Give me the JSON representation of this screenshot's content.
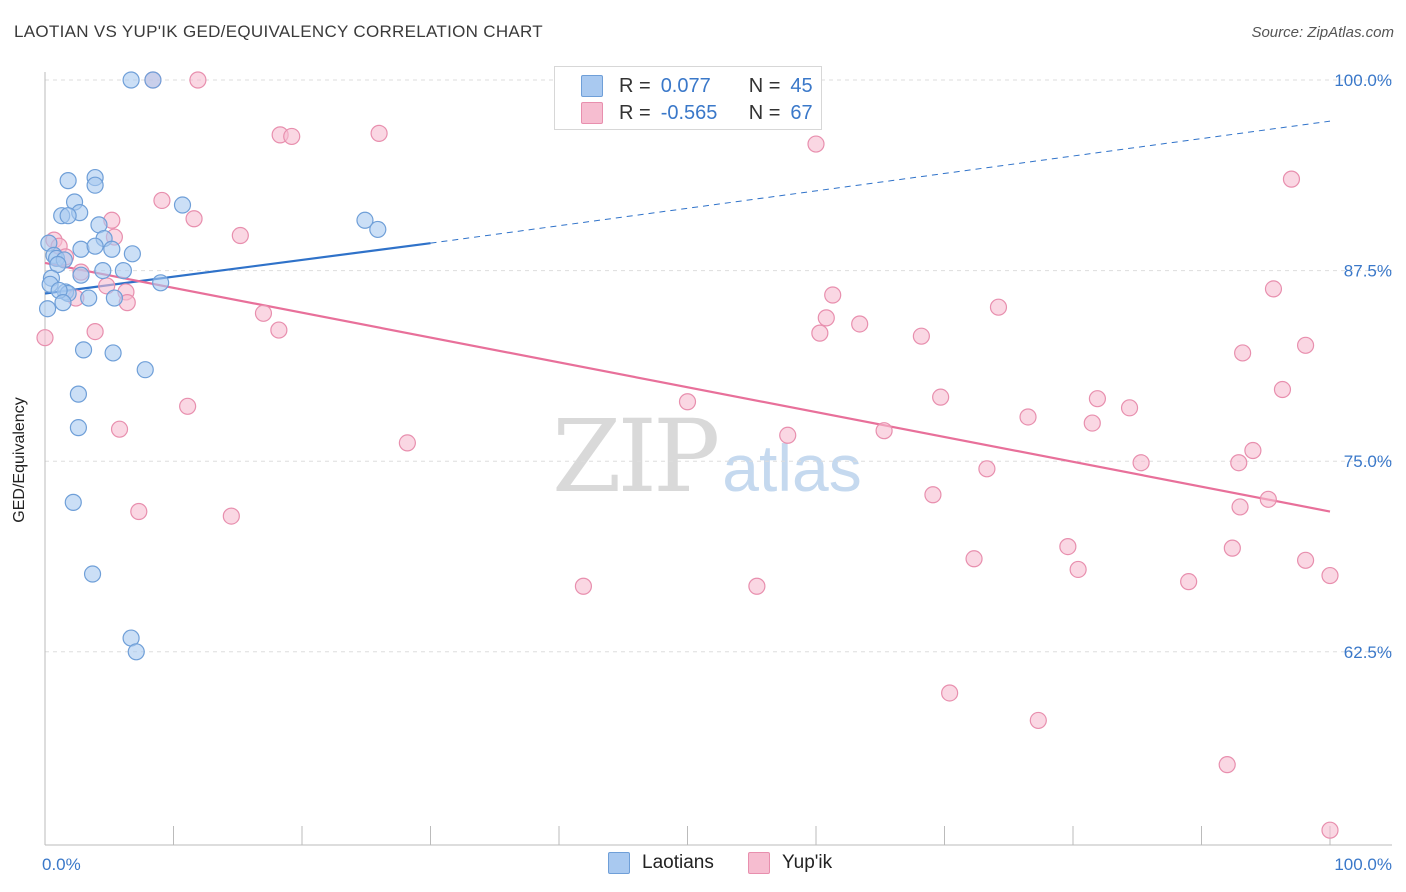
{
  "title": "LAOTIAN VS YUP'IK GED/EQUIVALENCY CORRELATION CHART",
  "source": "Source: ZipAtlas.com",
  "watermark": {
    "zip": "ZIP",
    "atlas": "atlas"
  },
  "legend_top": [
    {
      "r_label": "R =",
      "r_value": "0.077",
      "n_label": "N =",
      "n_value": "45",
      "color": "#a9c9f0"
    },
    {
      "r_label": "R =",
      "r_value": "-0.565",
      "n_label": "N =",
      "n_value": "67",
      "color": "#f6bdd0"
    }
  ],
  "legend_bottom": [
    {
      "label": "Laotians",
      "color": "#a9c9f0"
    },
    {
      "label": "Yup'ik",
      "color": "#f6bdd0"
    }
  ],
  "colors": {
    "laotian_fill": "#a9c9f0",
    "laotian_stroke": "#6f9fd8",
    "laotian_line": "#2f72c9",
    "yupik_fill": "#f6bdd0",
    "yupik_stroke": "#e88fae",
    "yupik_line": "#e8709a",
    "grid": "#dddddd",
    "tick_label": "#3a78c9"
  },
  "chart_data": {
    "type": "scatter",
    "title": "LAOTIAN VS YUP'IK GED/EQUIVALENCY CORRELATION CHART",
    "xlabel": "",
    "ylabel": "GED/Equivalency",
    "xlim": [
      0,
      100
    ],
    "ylim": [
      50.5,
      101
    ],
    "x_tick_labels": [
      "0.0%",
      "100.0%"
    ],
    "y_ticks": [
      62.5,
      75.0,
      87.5,
      100.0
    ],
    "y_tick_labels": [
      "62.5%",
      "75.0%",
      "87.5%",
      "100.0%"
    ],
    "grid": true,
    "legend_position": "top-center",
    "series": [
      {
        "name": "Laotians",
        "r": 0.077,
        "n": 45,
        "trend": {
          "x": [
            0,
            30
          ],
          "y": [
            86.0,
            89.3
          ],
          "dashed_to": [
            100,
            97.3
          ]
        },
        "points": [
          [
            6.7,
            100.0
          ],
          [
            8.4,
            100.0
          ],
          [
            1.8,
            93.4
          ],
          [
            3.9,
            93.6
          ],
          [
            3.9,
            93.1
          ],
          [
            2.3,
            92.0
          ],
          [
            2.7,
            91.3
          ],
          [
            1.3,
            91.1
          ],
          [
            1.8,
            91.1
          ],
          [
            10.7,
            91.8
          ],
          [
            24.9,
            90.8
          ],
          [
            25.9,
            90.2
          ],
          [
            4.2,
            90.5
          ],
          [
            4.6,
            89.6
          ],
          [
            0.3,
            89.3
          ],
          [
            2.8,
            88.9
          ],
          [
            3.9,
            89.1
          ],
          [
            5.2,
            88.9
          ],
          [
            6.8,
            88.6
          ],
          [
            0.7,
            88.5
          ],
          [
            0.9,
            88.3
          ],
          [
            1.5,
            88.2
          ],
          [
            1.0,
            87.9
          ],
          [
            4.5,
            87.5
          ],
          [
            6.1,
            87.5
          ],
          [
            2.8,
            87.2
          ],
          [
            0.5,
            87.0
          ],
          [
            0.4,
            86.6
          ],
          [
            9.0,
            86.7
          ],
          [
            1.6,
            86.1
          ],
          [
            1.8,
            86.0
          ],
          [
            1.1,
            86.2
          ],
          [
            3.4,
            85.7
          ],
          [
            5.4,
            85.7
          ],
          [
            1.4,
            85.4
          ],
          [
            0.2,
            85.0
          ],
          [
            3.0,
            82.3
          ],
          [
            5.3,
            82.1
          ],
          [
            7.8,
            81.0
          ],
          [
            2.6,
            79.4
          ],
          [
            2.6,
            77.2
          ],
          [
            2.2,
            72.3
          ],
          [
            3.7,
            67.6
          ],
          [
            6.7,
            63.4
          ],
          [
            7.1,
            62.5
          ]
        ]
      },
      {
        "name": "Yup'ik",
        "r": -0.565,
        "n": 67,
        "trend": {
          "x": [
            0,
            100
          ],
          "y": [
            88.0,
            71.7
          ]
        },
        "points": [
          [
            8.4,
            100.0
          ],
          [
            11.9,
            100.0
          ],
          [
            18.3,
            96.4
          ],
          [
            19.2,
            96.3
          ],
          [
            26.0,
            96.5
          ],
          [
            60.0,
            95.8
          ],
          [
            97.0,
            93.5
          ],
          [
            9.1,
            92.1
          ],
          [
            11.6,
            90.9
          ],
          [
            5.2,
            90.8
          ],
          [
            15.2,
            89.8
          ],
          [
            5.4,
            89.7
          ],
          [
            0.7,
            89.5
          ],
          [
            1.1,
            89.1
          ],
          [
            1.6,
            88.4
          ],
          [
            2.8,
            87.4
          ],
          [
            4.8,
            86.5
          ],
          [
            6.3,
            86.1
          ],
          [
            95.6,
            86.3
          ],
          [
            61.3,
            85.9
          ],
          [
            2.4,
            85.7
          ],
          [
            6.4,
            85.4
          ],
          [
            74.2,
            85.1
          ],
          [
            17.0,
            84.7
          ],
          [
            60.8,
            84.4
          ],
          [
            63.4,
            84.0
          ],
          [
            18.2,
            83.6
          ],
          [
            3.9,
            83.5
          ],
          [
            60.3,
            83.4
          ],
          [
            68.2,
            83.2
          ],
          [
            0.0,
            83.1
          ],
          [
            98.1,
            82.6
          ],
          [
            93.2,
            82.1
          ],
          [
            96.3,
            79.7
          ],
          [
            69.7,
            79.2
          ],
          [
            81.9,
            79.1
          ],
          [
            50.0,
            78.9
          ],
          [
            11.1,
            78.6
          ],
          [
            84.4,
            78.5
          ],
          [
            76.5,
            77.9
          ],
          [
            81.5,
            77.5
          ],
          [
            5.8,
            77.1
          ],
          [
            65.3,
            77.0
          ],
          [
            57.8,
            76.7
          ],
          [
            28.2,
            76.2
          ],
          [
            94.0,
            75.7
          ],
          [
            92.9,
            74.9
          ],
          [
            85.3,
            74.9
          ],
          [
            73.3,
            74.5
          ],
          [
            69.1,
            72.8
          ],
          [
            95.2,
            72.5
          ],
          [
            93.0,
            72.0
          ],
          [
            7.3,
            71.7
          ],
          [
            14.5,
            71.4
          ],
          [
            79.6,
            69.4
          ],
          [
            92.4,
            69.3
          ],
          [
            72.3,
            68.6
          ],
          [
            98.1,
            68.5
          ],
          [
            80.4,
            67.9
          ],
          [
            100.0,
            67.5
          ],
          [
            89.0,
            67.1
          ],
          [
            41.9,
            66.8
          ],
          [
            55.4,
            66.8
          ],
          [
            70.4,
            59.8
          ],
          [
            77.3,
            58.0
          ],
          [
            92.0,
            55.1
          ],
          [
            100.0,
            50.8
          ]
        ]
      }
    ]
  }
}
